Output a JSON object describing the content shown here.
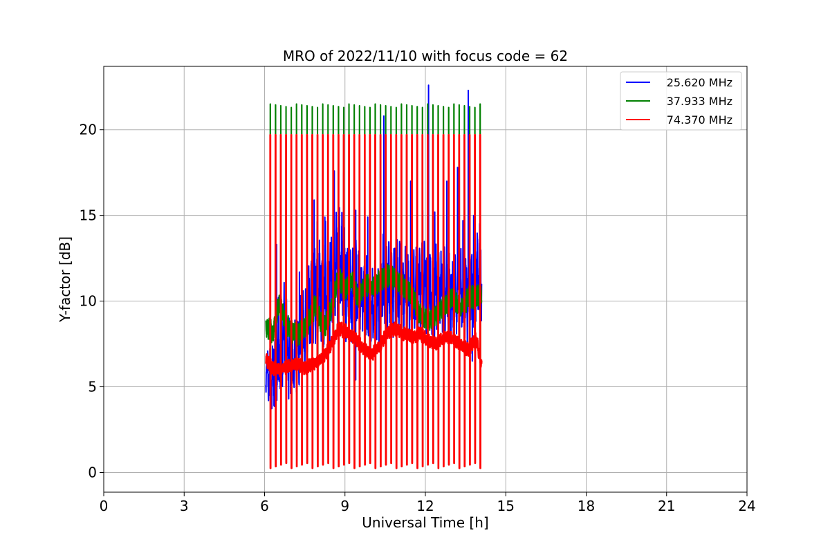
{
  "chart_data": {
    "type": "line",
    "title": "MRO of 2022/11/10 with focus code = 62",
    "xlabel": "Universal Time [h]",
    "ylabel": "Y-factor [dB]",
    "xlim": [
      0,
      24
    ],
    "ylim": [
      -1.15,
      23.7
    ],
    "xticks": [
      0,
      3,
      6,
      9,
      12,
      15,
      18,
      21,
      24
    ],
    "xtick_labels": [
      "0",
      "3",
      "6",
      "9",
      "12",
      "15",
      "18",
      "21",
      "24"
    ],
    "yticks": [
      0,
      5,
      10,
      15,
      20
    ],
    "ytick_labels": [
      "0",
      "5",
      "10",
      "15",
      "20"
    ],
    "grid": true,
    "legend_position": "top-right",
    "series": [
      {
        "name": "25.620 MHz",
        "color": "#0000ff",
        "base": [
          [
            6.05,
            6.0
          ],
          [
            6.25,
            5.2
          ],
          [
            6.5,
            7.0
          ],
          [
            6.75,
            8.5
          ],
          [
            7.0,
            6.0
          ],
          [
            7.25,
            7.2
          ],
          [
            7.5,
            8.5
          ],
          [
            7.75,
            10.2
          ],
          [
            8.0,
            11.0
          ],
          [
            8.25,
            10.5
          ],
          [
            8.5,
            11.0
          ],
          [
            8.75,
            12.5
          ],
          [
            9.0,
            11.0
          ],
          [
            9.25,
            10.5
          ],
          [
            9.5,
            10.8
          ],
          [
            9.75,
            9.8
          ],
          [
            10.0,
            9.2
          ],
          [
            10.25,
            10.2
          ],
          [
            10.5,
            11.2
          ],
          [
            10.75,
            10.8
          ],
          [
            11.0,
            11.0
          ],
          [
            11.25,
            10.5
          ],
          [
            11.5,
            10.2
          ],
          [
            11.75,
            10.8
          ],
          [
            12.0,
            11.2
          ],
          [
            12.25,
            10.4
          ],
          [
            12.5,
            10.8
          ],
          [
            12.75,
            10.6
          ],
          [
            13.0,
            10.2
          ],
          [
            13.25,
            10.8
          ],
          [
            13.5,
            10.2
          ],
          [
            13.75,
            11.0
          ],
          [
            14.1,
            12.0
          ]
        ],
        "amplitude": [
          [
            6.05,
            1.2
          ],
          [
            6.5,
            2.8
          ],
          [
            7.0,
            1.8
          ],
          [
            7.5,
            2.2
          ],
          [
            8.0,
            3.0
          ],
          [
            8.5,
            3.2
          ],
          [
            9.0,
            2.8
          ],
          [
            9.5,
            2.5
          ],
          [
            10.0,
            2.2
          ],
          [
            10.5,
            2.5
          ],
          [
            11.0,
            2.4
          ],
          [
            11.5,
            2.4
          ],
          [
            12.0,
            2.4
          ],
          [
            12.5,
            2.3
          ],
          [
            13.0,
            2.2
          ],
          [
            13.5,
            2.4
          ],
          [
            14.1,
            2.6
          ]
        ],
        "spikes": [
          [
            6.45,
            13.3
          ],
          [
            6.6,
            12.1
          ],
          [
            7.3,
            11.7
          ],
          [
            7.85,
            15.9
          ],
          [
            8.25,
            14.9
          ],
          [
            8.6,
            17.6
          ],
          [
            8.95,
            17.5
          ],
          [
            9.4,
            15.3
          ],
          [
            9.85,
            14.9
          ],
          [
            10.45,
            20.8
          ],
          [
            11.1,
            15.8
          ],
          [
            11.45,
            17.0
          ],
          [
            11.9,
            15.3
          ],
          [
            12.12,
            22.6
          ],
          [
            12.35,
            15.2
          ],
          [
            12.8,
            17.0
          ],
          [
            13.2,
            17.8
          ],
          [
            13.4,
            14.7
          ],
          [
            13.6,
            22.3
          ],
          [
            13.8,
            15.0
          ],
          [
            14.05,
            16.0
          ]
        ],
        "dips": [
          [
            6.35,
            3.9
          ],
          [
            6.9,
            4.3
          ],
          [
            9.4,
            5.4
          ],
          [
            13.75,
            6.5
          ]
        ]
      },
      {
        "name": "37.933 MHz",
        "color": "#008000",
        "base": [
          [
            6.05,
            8.6
          ],
          [
            6.3,
            8.1
          ],
          [
            6.55,
            10.0
          ],
          [
            6.8,
            8.6
          ],
          [
            7.2,
            8.0
          ],
          [
            7.6,
            8.6
          ],
          [
            7.9,
            9.8
          ],
          [
            8.2,
            8.3
          ],
          [
            8.5,
            9.5
          ],
          [
            8.75,
            11.5
          ],
          [
            9.0,
            10.6
          ],
          [
            9.25,
            11.2
          ],
          [
            9.5,
            10.2
          ],
          [
            9.75,
            11.0
          ],
          [
            10.0,
            10.8
          ],
          [
            10.3,
            11.2
          ],
          [
            10.6,
            11.5
          ],
          [
            10.9,
            11.3
          ],
          [
            11.2,
            10.8
          ],
          [
            11.5,
            10.4
          ],
          [
            11.8,
            9.2
          ],
          [
            12.1,
            8.9
          ],
          [
            12.4,
            9.2
          ],
          [
            12.7,
            9.7
          ],
          [
            13.0,
            10.2
          ],
          [
            13.3,
            9.6
          ],
          [
            13.6,
            10.2
          ],
          [
            14.1,
            10.3
          ]
        ],
        "peak_high": 21.5,
        "peak_low_base": 0.55
      },
      {
        "name": "74.370 MHz",
        "color": "#ff0000",
        "base": [
          [
            6.05,
            6.6
          ],
          [
            6.3,
            6.1
          ],
          [
            6.6,
            6.0
          ],
          [
            6.9,
            6.2
          ],
          [
            7.2,
            6.4
          ],
          [
            7.5,
            6.1
          ],
          [
            7.8,
            6.3
          ],
          [
            8.1,
            6.6
          ],
          [
            8.4,
            7.2
          ],
          [
            8.75,
            8.4
          ],
          [
            9.1,
            8.2
          ],
          [
            9.4,
            7.8
          ],
          [
            9.7,
            7.2
          ],
          [
            10.0,
            6.9
          ],
          [
            10.3,
            7.4
          ],
          [
            10.6,
            8.2
          ],
          [
            10.9,
            8.4
          ],
          [
            11.2,
            8.1
          ],
          [
            11.5,
            7.9
          ],
          [
            11.8,
            8.1
          ],
          [
            12.1,
            7.7
          ],
          [
            12.4,
            7.5
          ],
          [
            12.7,
            7.9
          ],
          [
            13.0,
            7.8
          ],
          [
            13.3,
            7.4
          ],
          [
            13.6,
            7.2
          ],
          [
            13.9,
            7.8
          ],
          [
            14.1,
            6.2
          ]
        ],
        "peak_high": 19.7,
        "peak_low_base": 0.25
      }
    ],
    "calibration_pulses": {
      "start": 6.22,
      "end": 14.05,
      "count": 41
    }
  }
}
